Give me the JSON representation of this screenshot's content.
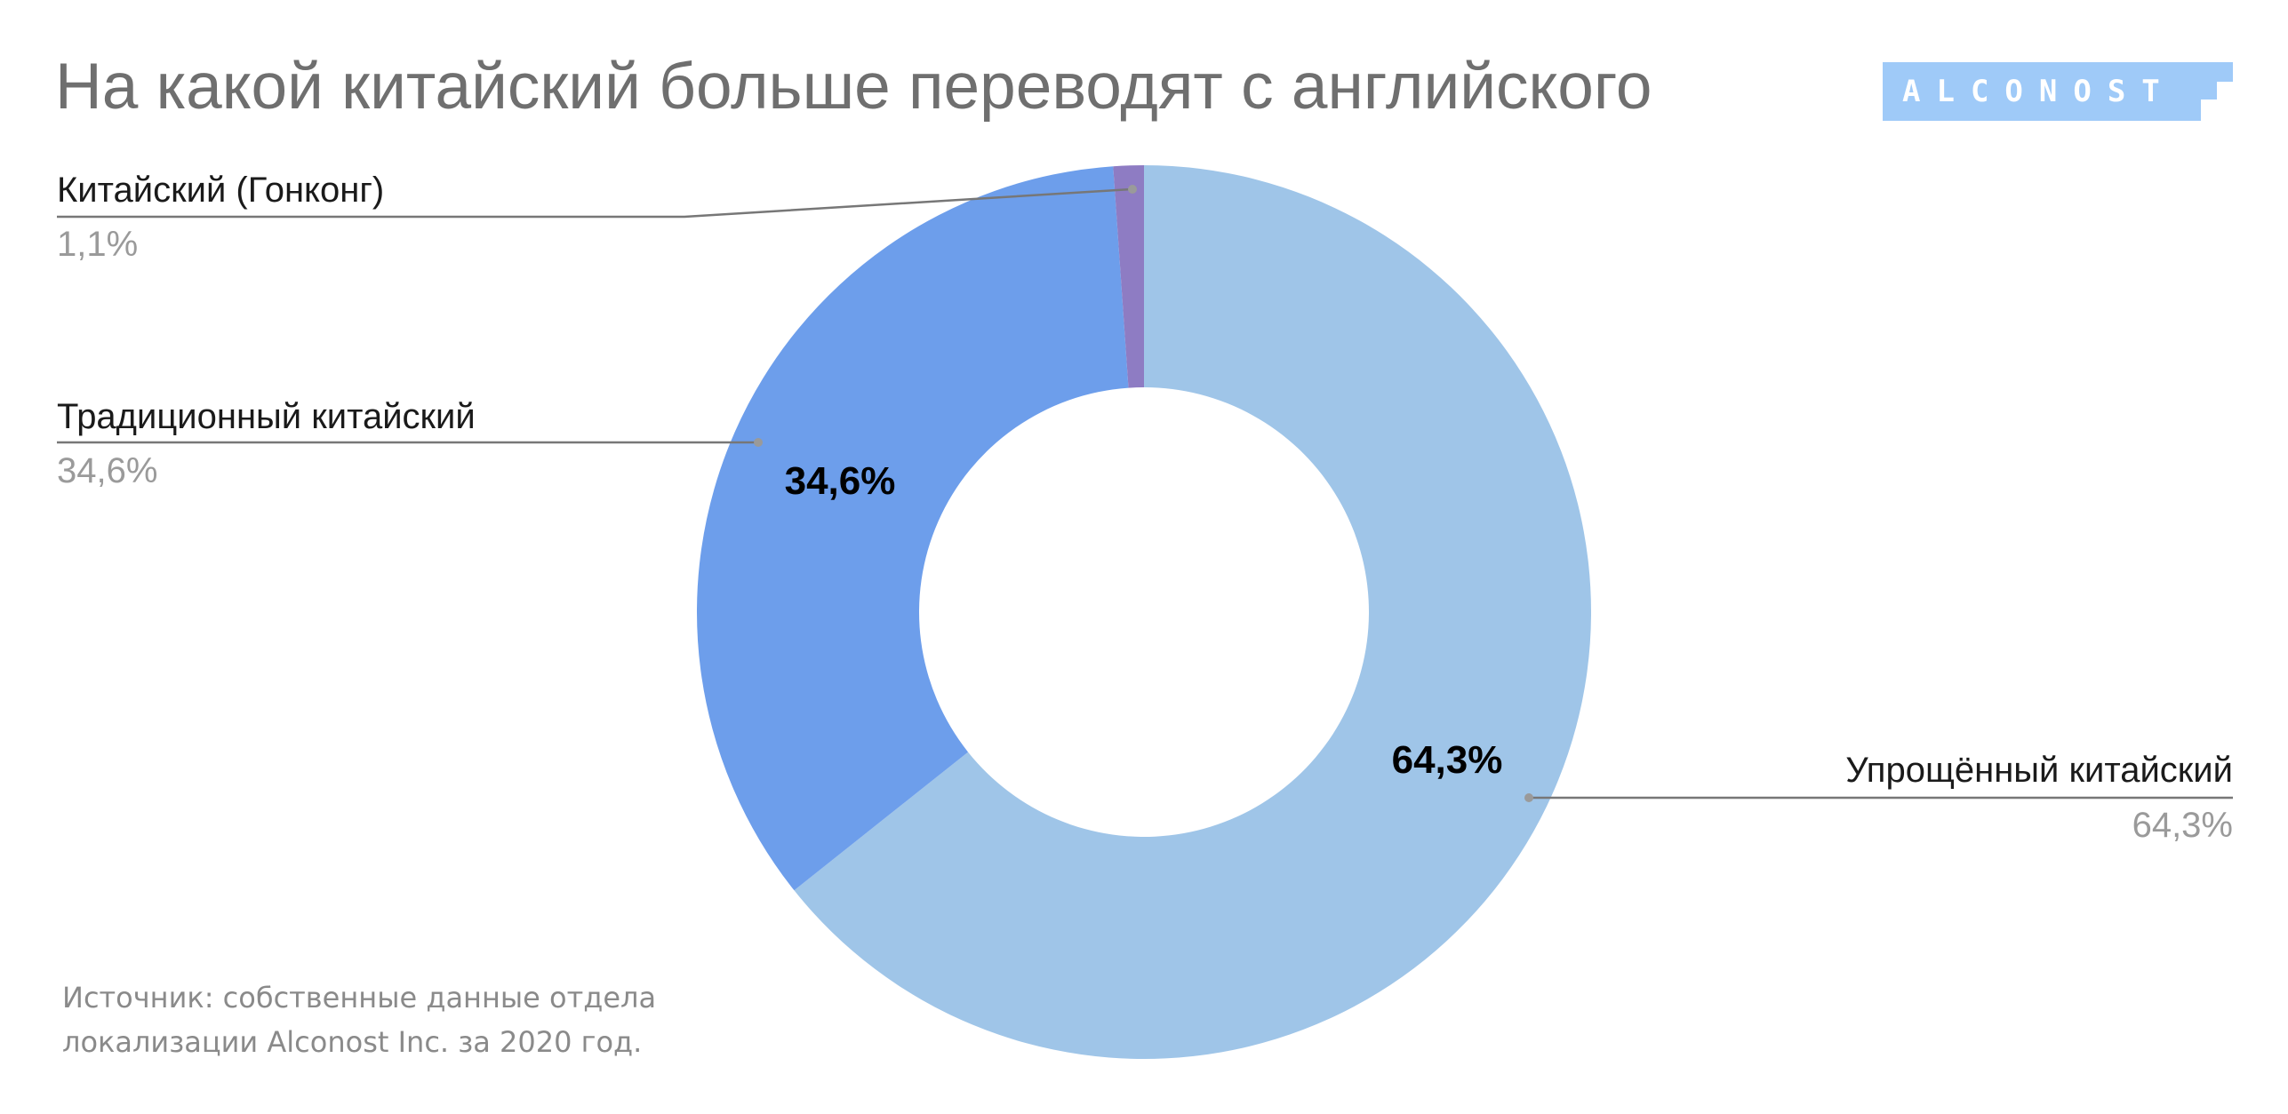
{
  "title": "На какой китайский больше переводят с английского",
  "logo": {
    "text": "ALCONOST",
    "color": "#9fcaf8"
  },
  "source": {
    "line1": "Источник: собственные данные отдела",
    "line2": "локализации Alconost Inc. за 2020 год."
  },
  "chart_data": {
    "type": "pie",
    "variant": "donut",
    "title": "На какой китайский больше переводят с английского",
    "series": [
      {
        "name": "Упрощённый китайский",
        "value": 64.3,
        "percent_label": "64,3%",
        "color": "#9fc5e8",
        "data_label": "64,3%"
      },
      {
        "name": "Традиционный китайский",
        "value": 34.6,
        "percent_label": "34,6%",
        "color": "#6d9eeb",
        "data_label": "34,6%"
      },
      {
        "name": "Китайский (Гонконг)",
        "value": 1.1,
        "percent_label": "1,1%",
        "color": "#8e7cc3",
        "data_label": ""
      }
    ],
    "legend": "outside-labels"
  }
}
